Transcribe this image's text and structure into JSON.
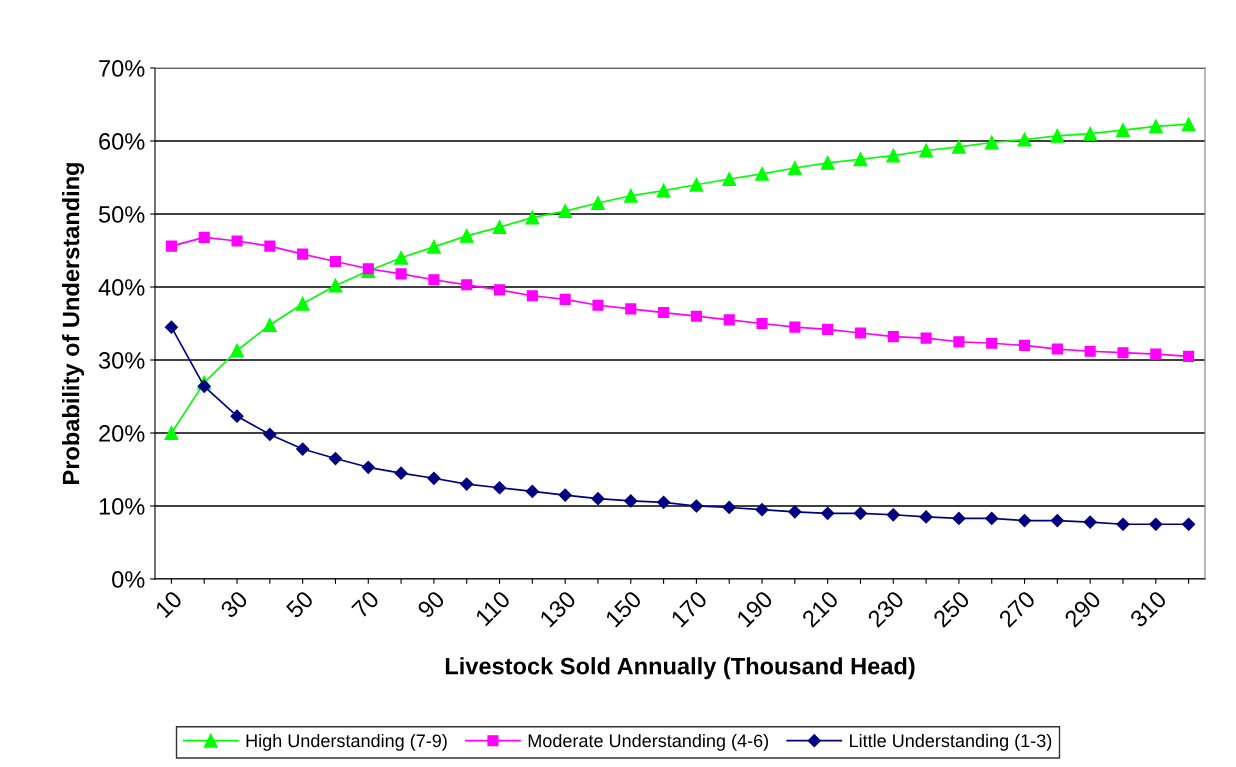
{
  "chart_data": {
    "type": "line",
    "xlabel": "Livestock Sold Annually (Thousand Head)",
    "ylabel": "Probability of Understanding",
    "categories": [
      "10",
      null,
      "30",
      null,
      "50",
      null,
      "70",
      null,
      "90",
      null,
      "110",
      null,
      "130",
      null,
      "150",
      null,
      "170",
      null,
      "190",
      null,
      "210",
      null,
      "230",
      null,
      "250",
      null,
      "270",
      null,
      "290",
      null,
      "310",
      null
    ],
    "series": [
      {
        "name": "High Understanding (7-9)",
        "color": "#00ff00",
        "marker": "triangle",
        "values": [
          20.0,
          26.9,
          31.3,
          34.8,
          37.7,
          40.2,
          42.2,
          44.0,
          45.5,
          47.0,
          48.2,
          49.5,
          50.4,
          51.5,
          52.5,
          53.2,
          54.0,
          54.8,
          55.5,
          56.3,
          57.0,
          57.5,
          58.0,
          58.7,
          59.2,
          59.8,
          60.2,
          60.7,
          61.0,
          61.5,
          62.0,
          62.3
        ]
      },
      {
        "name": "Moderate Understanding (4-6)",
        "color": "#ff00ff",
        "marker": "square",
        "values": [
          45.6,
          46.8,
          46.3,
          45.6,
          44.5,
          43.5,
          42.5,
          41.8,
          41.0,
          40.3,
          39.6,
          38.8,
          38.3,
          37.5,
          37.0,
          36.5,
          36.0,
          35.5,
          35.0,
          34.5,
          34.2,
          33.7,
          33.2,
          33.0,
          32.5,
          32.3,
          32.0,
          31.5,
          31.2,
          31.0,
          30.8,
          30.5
        ]
      },
      {
        "name": "Little Understanding (1-3)",
        "color": "#000080",
        "marker": "diamond",
        "values": [
          34.5,
          26.4,
          22.3,
          19.8,
          17.8,
          16.5,
          15.3,
          14.5,
          13.8,
          13.0,
          12.5,
          12.0,
          11.5,
          11.0,
          10.7,
          10.5,
          10.0,
          9.8,
          9.5,
          9.2,
          9.0,
          9.0,
          8.8,
          8.5,
          8.3,
          8.3,
          8.0,
          8.0,
          7.8,
          7.5,
          7.5,
          7.5
        ]
      }
    ],
    "ylim": [
      0,
      70
    ],
    "yticks": [
      {
        "value": 0,
        "label": "0%"
      },
      {
        "value": 10,
        "label": "10%"
      },
      {
        "value": 20,
        "label": "20%"
      },
      {
        "value": 30,
        "label": "30%"
      },
      {
        "value": 40,
        "label": "40%"
      },
      {
        "value": 50,
        "label": "50%"
      },
      {
        "value": 60,
        "label": "60%"
      },
      {
        "value": 70,
        "label": "70%"
      }
    ],
    "grid": "y",
    "legend": "bottom",
    "line_style": "solid"
  }
}
